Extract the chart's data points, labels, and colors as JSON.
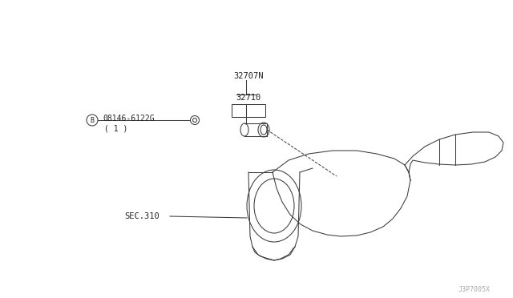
{
  "bg_color": "#ffffff",
  "line_color": "#3a3a3a",
  "text_color": "#222222",
  "fig_width": 6.4,
  "fig_height": 3.72,
  "part_label_32707N": "32707N",
  "part_label_32710": "32710",
  "part_label_bolt": "08146-6122G",
  "part_label_bolt_sub": "( 1 )",
  "part_label_B": "B",
  "part_label_sec": "SEC.310",
  "watermark": "J3P7005X"
}
